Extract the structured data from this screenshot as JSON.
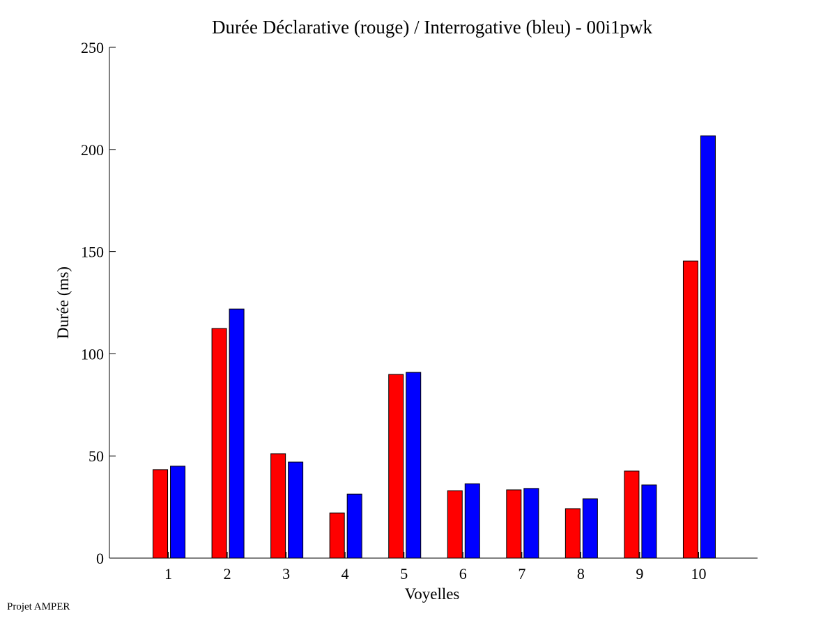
{
  "chart_data": {
    "type": "bar",
    "title": "Durée Déclarative (rouge) / Interrogative (bleu) - 00i1pwk",
    "xlabel": "Voyelles",
    "ylabel": "Durée (ms)",
    "categories": [
      "1",
      "2",
      "3",
      "4",
      "5",
      "6",
      "7",
      "8",
      "9",
      "10"
    ],
    "series": [
      {
        "name": "Déclarative (rouge)",
        "color": "#ff0000",
        "values": [
          43.3,
          112.4,
          51.1,
          22.1,
          89.9,
          33.0,
          33.4,
          24.2,
          42.6,
          145.4
        ]
      },
      {
        "name": "Interrogative (bleu)",
        "color": "#0000ff",
        "values": [
          45.0,
          121.9,
          47.0,
          31.3,
          90.9,
          36.4,
          34.1,
          29.0,
          35.8,
          206.7
        ]
      }
    ],
    "ylim": [
      0,
      250
    ],
    "xlim": [
      0,
      11
    ],
    "yticks": [
      "0",
      "50",
      "100",
      "150",
      "200",
      "250"
    ],
    "grid": false
  },
  "footer": "Projet AMPER"
}
